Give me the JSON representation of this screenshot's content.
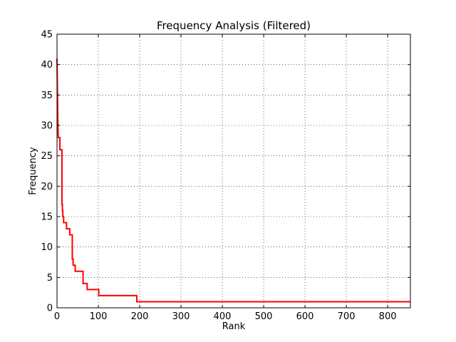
{
  "chart_data": {
    "type": "line",
    "title": "Frequency Analysis (Filtered)",
    "xlabel": "Rank",
    "ylabel": "Frequency",
    "xlim": [
      0,
      855
    ],
    "ylim": [
      0,
      45
    ],
    "xticks": [
      0,
      100,
      200,
      300,
      400,
      500,
      600,
      700,
      800
    ],
    "yticks": [
      0,
      5,
      10,
      15,
      20,
      25,
      30,
      35,
      40,
      45
    ],
    "grid": true,
    "series": [
      {
        "color": "#ff0000",
        "step_points": [
          [
            0,
            41
          ],
          [
            1,
            36
          ],
          [
            2,
            31
          ],
          [
            3,
            28
          ],
          [
            7,
            28
          ],
          [
            7,
            26
          ],
          [
            12,
            26
          ],
          [
            12,
            17
          ],
          [
            13,
            17
          ],
          [
            13,
            16
          ],
          [
            14,
            16
          ],
          [
            14,
            15
          ],
          [
            16,
            15
          ],
          [
            16,
            14
          ],
          [
            23,
            14
          ],
          [
            23,
            13
          ],
          [
            31,
            13
          ],
          [
            31,
            12
          ],
          [
            37,
            12
          ],
          [
            37,
            8
          ],
          [
            39,
            8
          ],
          [
            39,
            7
          ],
          [
            44,
            7
          ],
          [
            44,
            6
          ],
          [
            63,
            6
          ],
          [
            63,
            4
          ],
          [
            73,
            4
          ],
          [
            73,
            3
          ],
          [
            101,
            3
          ],
          [
            101,
            2
          ],
          [
            193,
            2
          ],
          [
            193,
            1
          ],
          [
            855,
            1
          ]
        ]
      }
    ]
  }
}
